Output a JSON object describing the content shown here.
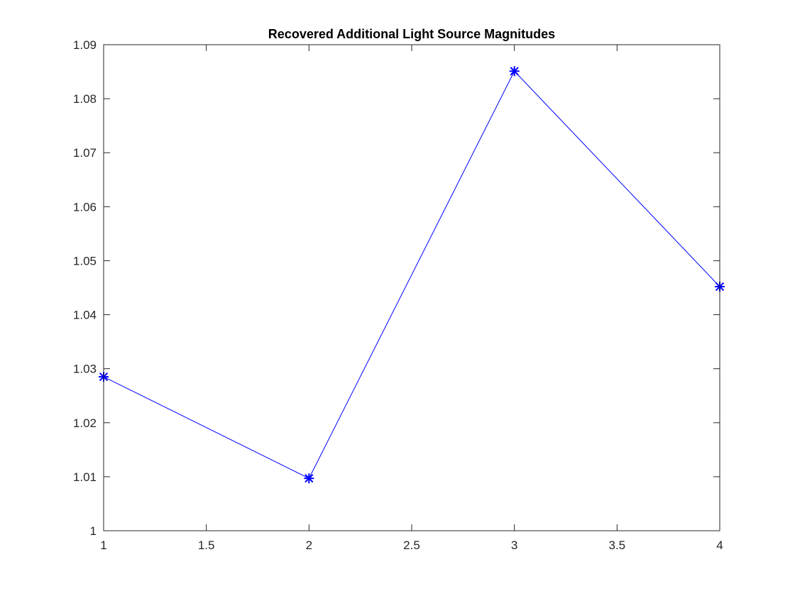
{
  "chart_data": {
    "type": "line",
    "title": "Recovered Additional Light Source Magnitudes",
    "xlabel": "",
    "ylabel": "",
    "x": [
      1,
      2,
      3,
      4
    ],
    "series": [
      {
        "values": [
          1.0285,
          1.0097,
          1.0851,
          1.0452
        ],
        "color": "#0000ff",
        "marker": "asterisk",
        "line_style": "solid"
      }
    ],
    "xlim": [
      1,
      4
    ],
    "ylim": [
      1,
      1.09
    ],
    "xticks": [
      "1",
      "1.5",
      "2",
      "2.5",
      "3",
      "3.5",
      "4"
    ],
    "yticks": [
      "1",
      "1.01",
      "1.02",
      "1.03",
      "1.04",
      "1.05",
      "1.06",
      "1.07",
      "1.08",
      "1.09"
    ],
    "grid": false,
    "legend": "none",
    "box": true
  }
}
